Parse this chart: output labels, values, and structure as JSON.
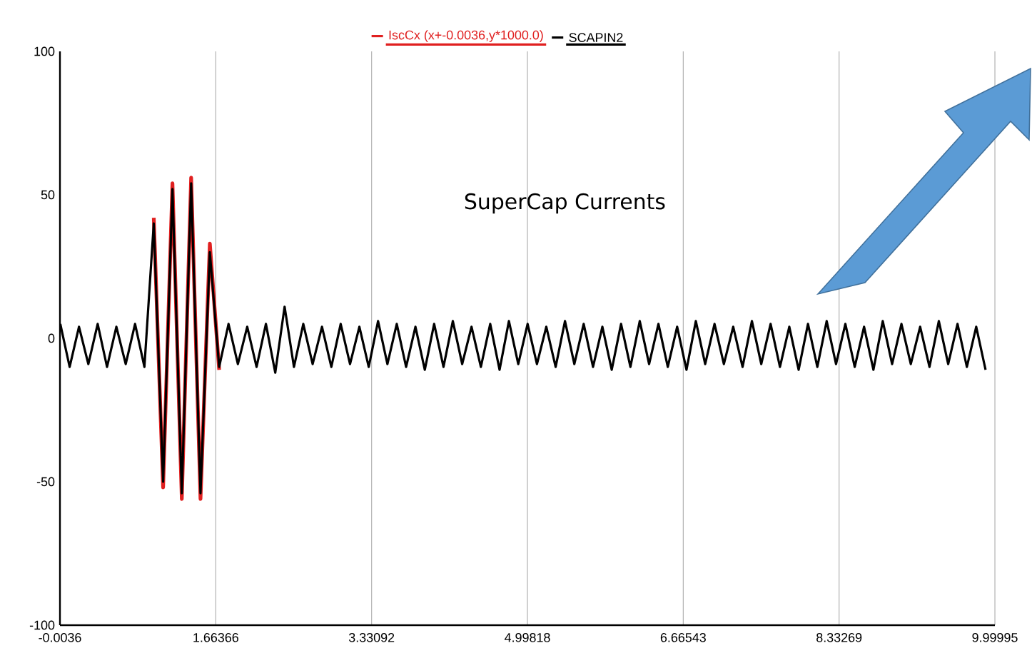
{
  "chart_data": {
    "type": "line",
    "annotations": [
      "SuperCap Currents"
    ],
    "xlim": [
      -0.0036,
      9.99995
    ],
    "xticks": [
      -0.0036,
      1.66366,
      3.33092,
      4.99818,
      6.66543,
      8.33269,
      9.99995
    ],
    "ylim": [
      -100,
      100
    ],
    "yticks": [
      -100,
      -50,
      0,
      50,
      100
    ],
    "grid": "x",
    "legend": "top",
    "marker": "none",
    "line_style": "solid",
    "series": [
      {
        "name": "IscCx (x+-0.0036,y*1000.0)",
        "color": "#e02020",
        "x": [
          1.0,
          1.1,
          1.2,
          1.3,
          1.4,
          1.5,
          1.6,
          1.7
        ],
        "values": [
          42,
          -52,
          54,
          -56,
          56,
          -56,
          33,
          -11
        ]
      },
      {
        "name": "SCAPIN2",
        "color": "#000000",
        "x": [
          0.0,
          0.1,
          0.2,
          0.3,
          0.4,
          0.5,
          0.6,
          0.7,
          0.8,
          0.9,
          1.0,
          1.1,
          1.2,
          1.3,
          1.4,
          1.5,
          1.6,
          1.7,
          1.8,
          1.9,
          2.0,
          2.1,
          2.2,
          2.3,
          2.4,
          2.5,
          2.6,
          2.7,
          2.8,
          2.9,
          3.0,
          3.1,
          3.2,
          3.3,
          3.4,
          3.5,
          3.6,
          3.7,
          3.8,
          3.9,
          4.0,
          4.1,
          4.2,
          4.3,
          4.4,
          4.5,
          4.6,
          4.7,
          4.8,
          4.9,
          5.0,
          5.1,
          5.2,
          5.3,
          5.4,
          5.5,
          5.6,
          5.7,
          5.8,
          5.9,
          6.0,
          6.1,
          6.2,
          6.3,
          6.4,
          6.5,
          6.6,
          6.7,
          6.8,
          6.9,
          7.0,
          7.1,
          7.2,
          7.3,
          7.4,
          7.5,
          7.6,
          7.7,
          7.8,
          7.9,
          8.0,
          8.1,
          8.2,
          8.3,
          8.4,
          8.5,
          8.6,
          8.7,
          8.8,
          8.9,
          9.0,
          9.1,
          9.2,
          9.3,
          9.4,
          9.5,
          9.6,
          9.7,
          9.8,
          9.9
        ],
        "values": [
          5,
          -10,
          4,
          -9,
          5,
          -10,
          4,
          -9,
          5,
          -10,
          40,
          -50,
          52,
          -54,
          54,
          -54,
          30,
          -10,
          5,
          -9,
          4,
          -10,
          5,
          -12,
          11,
          -10,
          5,
          -9,
          4,
          -10,
          5,
          -9,
          4,
          -10,
          6,
          -9,
          5,
          -10,
          4,
          -11,
          5,
          -10,
          6,
          -9,
          4,
          -10,
          5,
          -11,
          6,
          -9,
          5,
          -9,
          4,
          -10,
          6,
          -9,
          5,
          -10,
          4,
          -11,
          5,
          -10,
          6,
          -9,
          5,
          -10,
          4,
          -11,
          6,
          -9,
          5,
          -9,
          4,
          -10,
          6,
          -9,
          5,
          -10,
          4,
          -11,
          5,
          -10,
          6,
          -9,
          5,
          -10,
          4,
          -11,
          6,
          -9,
          5,
          -9,
          4,
          -10,
          6,
          -9,
          5,
          -10,
          4,
          -11
        ]
      }
    ]
  }
}
